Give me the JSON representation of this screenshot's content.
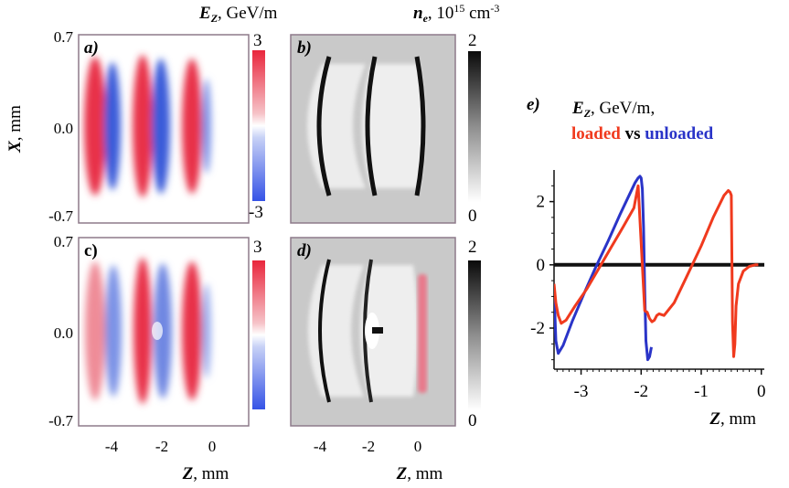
{
  "colors": {
    "red": "#e8324a",
    "blue": "#3a5bd9",
    "black": "#111111",
    "loaded_line": "#f03a1e",
    "unloaded_line": "#2a34c8"
  },
  "panels": {
    "ez_title_sym": "E",
    "ez_title_sub": "Z",
    "ez_title_unit": ", GeV/m",
    "ne_title_sym": "n",
    "ne_title_sub": "e",
    "ne_title_unit": ", 10",
    "ne_title_exp": "15",
    "ne_title_unit2": " cm",
    "ne_title_exp2": "-3",
    "label_a": "a)",
    "label_b": "b)",
    "label_c": "c)",
    "label_d": "d)",
    "x_axis_sym": "X",
    "x_axis_unit": ", mm",
    "z_axis_sym": "Z",
    "z_axis_unit": ", mm",
    "y_ticks": [
      "0.7",
      "0.0",
      "-0.7"
    ],
    "z_ticks": [
      "-4",
      "-2",
      "0"
    ],
    "ez_cbar_max": "3",
    "ez_cbar_min": "-3",
    "ne_cbar_max": "2",
    "ne_cbar_min": "0"
  },
  "chart_data": {
    "type": "line",
    "panel_label": "e)",
    "title_sym": "E",
    "title_sub": "Z",
    "title_unit": ", GeV/m,",
    "legend_loaded": "loaded",
    "legend_vs": "vs",
    "legend_unloaded": "unloaded",
    "xlabel_sym": "Z",
    "xlabel_unit": ", mm",
    "xlim": [
      -3.45,
      0.05
    ],
    "ylim": [
      -3.3,
      3.0
    ],
    "xticks": [
      "-3",
      "-2",
      "-1",
      "0"
    ],
    "yticks": [
      "2",
      "0",
      "-2"
    ],
    "series": [
      {
        "name": "loaded",
        "x": [
          -3.45,
          -3.42,
          -3.38,
          -3.33,
          -3.25,
          -3.1,
          -2.9,
          -2.7,
          -2.5,
          -2.3,
          -2.12,
          -2.08,
          -2.06,
          -2.05,
          -1.94,
          -1.9,
          -1.86,
          -1.82,
          -1.78,
          -1.74,
          -1.7,
          -1.62,
          -1.45,
          -1.25,
          -1.0,
          -0.8,
          -0.62,
          -0.55,
          -0.52,
          -0.5,
          -0.48,
          -0.46,
          -0.44,
          -0.42,
          -0.38,
          -0.3,
          -0.2,
          -0.1,
          -0.05
        ],
        "y": [
          -0.6,
          -1.2,
          -1.6,
          -1.85,
          -1.75,
          -1.3,
          -0.75,
          -0.1,
          0.55,
          1.2,
          1.8,
          2.2,
          2.4,
          2.5,
          -1.45,
          -1.5,
          -1.7,
          -1.8,
          -1.75,
          -1.6,
          -1.55,
          -1.6,
          -1.2,
          -0.4,
          0.6,
          1.5,
          2.2,
          2.35,
          2.3,
          2.2,
          -1.8,
          -2.9,
          -2.5,
          -1.3,
          -0.6,
          -0.2,
          -0.05,
          0,
          0
        ]
      },
      {
        "name": "unloaded",
        "x": [
          -3.45,
          -3.42,
          -3.38,
          -3.3,
          -3.15,
          -2.95,
          -2.75,
          -2.55,
          -2.35,
          -2.2,
          -2.1,
          -2.05,
          -2.02,
          -2.0,
          -1.98,
          -1.96,
          -1.94,
          -1.92,
          -1.89,
          -1.86,
          -1.83
        ],
        "y": [
          -0.8,
          -2.4,
          -2.8,
          -2.55,
          -1.8,
          -0.9,
          -0.05,
          0.75,
          1.6,
          2.2,
          2.6,
          2.75,
          2.8,
          2.75,
          2.4,
          1.2,
          -0.8,
          -2.4,
          -3.0,
          -2.9,
          -2.6
        ]
      }
    ]
  }
}
